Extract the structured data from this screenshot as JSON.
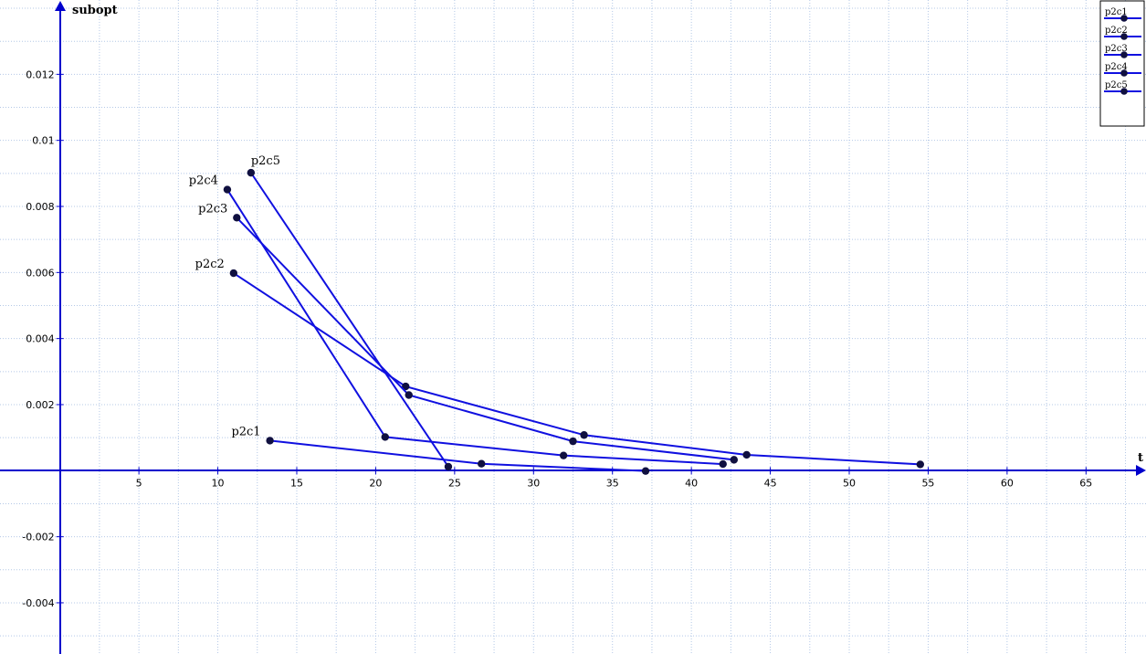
{
  "chart_data": {
    "type": "line",
    "xlabel": "t",
    "ylabel": "subopt",
    "xlim": [
      -3.8,
      68.8
    ],
    "ylim": [
      -0.00555,
      0.01425
    ],
    "x_ticks": [
      5,
      10,
      15,
      20,
      25,
      30,
      35,
      40,
      45,
      50,
      55,
      60,
      65
    ],
    "y_ticks": [
      -0.004,
      -0.002,
      0.002,
      0.004,
      0.006,
      0.008,
      0.01,
      0.012
    ],
    "y_tick_labels": [
      "-0.004",
      "-0.002",
      "0.002",
      "0.004",
      "0.006",
      "0.008",
      "0.01",
      "0.012"
    ],
    "grid": true,
    "legend_position": "top-right",
    "line_color": "#1010e0",
    "marker_color": "#101040",
    "series": [
      {
        "name": "p2c1",
        "x": [
          13.3,
          26.7,
          37.1
        ],
        "y": [
          0.00091,
          0.00021,
          -1e-05
        ]
      },
      {
        "name": "p2c2",
        "x": [
          11.0,
          21.9,
          33.2,
          43.5,
          54.5
        ],
        "y": [
          0.00598,
          0.00255,
          0.00108,
          0.00048,
          0.00019
        ]
      },
      {
        "name": "p2c3",
        "x": [
          11.2,
          22.1,
          32.5,
          42.7
        ],
        "y": [
          0.00766,
          0.00229,
          0.00089,
          0.00033
        ]
      },
      {
        "name": "p2c4",
        "x": [
          10.6,
          20.6,
          31.9,
          42.0
        ],
        "y": [
          0.00851,
          0.00102,
          0.00046,
          0.0002
        ]
      },
      {
        "name": "p2c5",
        "x": [
          12.1,
          24.6
        ],
        "y": [
          0.00902,
          0.00012
        ]
      }
    ]
  }
}
